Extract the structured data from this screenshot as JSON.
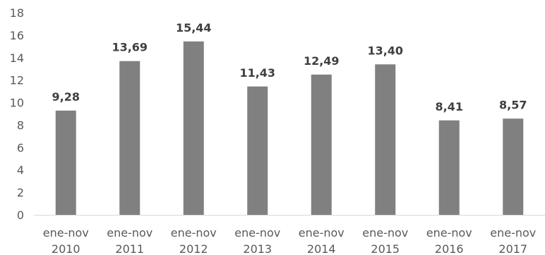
{
  "chart_data": {
    "type": "bar",
    "categories": [
      [
        "ene-nov",
        "2010"
      ],
      [
        "ene-nov",
        "2011"
      ],
      [
        "ene-nov",
        "2012"
      ],
      [
        "ene-nov",
        "2013"
      ],
      [
        "ene-nov",
        "2014"
      ],
      [
        "ene-nov",
        "2015"
      ],
      [
        "ene-nov",
        "2016"
      ],
      [
        "ene-nov",
        "2017"
      ]
    ],
    "values": [
      9.28,
      13.69,
      15.44,
      11.43,
      12.49,
      13.4,
      8.41,
      8.57
    ],
    "data_labels": [
      "9,28",
      "13,69",
      "15,44",
      "11,43",
      "12,49",
      "13,40",
      "8,41",
      "8,57"
    ],
    "ylim": [
      0,
      18
    ],
    "yticks": [
      0,
      2,
      4,
      6,
      8,
      10,
      12,
      14,
      16,
      18
    ],
    "ytick_labels": [
      "0",
      "2",
      "4",
      "6",
      "8",
      "10",
      "12",
      "14",
      "16",
      "18"
    ],
    "grid": false,
    "legend": "none",
    "bar_color": "#808080",
    "axis_color": "#d9d9d9",
    "text_color": "#595959",
    "label_color": "#404040"
  }
}
